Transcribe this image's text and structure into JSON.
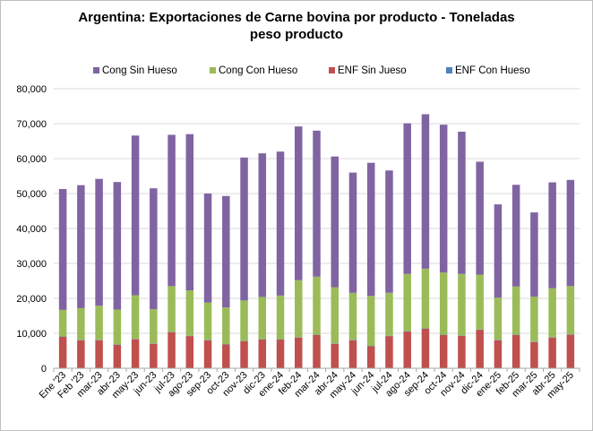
{
  "chart_data": {
    "type": "bar",
    "stacked": true,
    "title_line1": "Argentina: Exportaciones de Carne bovina por producto - Toneladas",
    "title_line2": "peso producto",
    "xlabel": "",
    "ylabel": "",
    "ylim": [
      0,
      80000
    ],
    "yticks": [
      "0",
      "10,000",
      "20,000",
      "30,000",
      "40,000",
      "50,000",
      "60,000",
      "70,000",
      "80,000"
    ],
    "grid": true,
    "legend_position": "top",
    "categories": [
      "Ene '23",
      "Feb '23",
      "mar-23",
      "abr-23",
      "may-23",
      "jun-23",
      "jul-23",
      "ago-23",
      "sep-23",
      "oct-23",
      "nov-23",
      "dic-23",
      "ene-24",
      "feb-24",
      "mar-24",
      "abr-24",
      "may-24",
      "jun-24",
      "jul-24",
      "ago-24",
      "sep-24",
      "oct-24",
      "nov-24",
      "dic-24",
      "ene-25",
      "feb-25",
      "mar-25",
      "abr-25",
      "may-25"
    ],
    "series": [
      {
        "name": "ENF Sin Jueso",
        "color": "#c0504d",
        "values": [
          9000,
          8000,
          8000,
          6700,
          8300,
          7000,
          10300,
          9200,
          8000,
          6800,
          7700,
          8200,
          8200,
          8800,
          9500,
          7000,
          8000,
          6300,
          9200,
          10500,
          11300,
          9500,
          9300,
          11000,
          8000,
          9500,
          7500,
          8800,
          9600
        ]
      },
      {
        "name": "ENF Con Hueso",
        "color": "#4f81bd",
        "values": [
          100,
          100,
          100,
          100,
          100,
          100,
          100,
          100,
          100,
          100,
          100,
          100,
          100,
          100,
          100,
          100,
          100,
          100,
          100,
          100,
          100,
          100,
          100,
          100,
          100,
          100,
          100,
          100,
          100
        ]
      },
      {
        "name": "Cong Con Hueso",
        "color": "#9bbb59",
        "values": [
          7600,
          9100,
          9800,
          10000,
          12500,
          9800,
          13100,
          13000,
          10700,
          10500,
          11600,
          12100,
          12500,
          16300,
          16600,
          16100,
          13500,
          14300,
          12300,
          16400,
          17100,
          17800,
          17600,
          15700,
          12100,
          13800,
          12900,
          14000,
          13800
        ]
      },
      {
        "name": "Cong Sin Hueso",
        "color": "#8064a2",
        "values": [
          34600,
          35200,
          36300,
          36500,
          45700,
          34600,
          43300,
          44700,
          31200,
          31900,
          40900,
          41100,
          41200,
          44000,
          41800,
          37400,
          34400,
          38100,
          35000,
          43100,
          44200,
          42300,
          40700,
          32300,
          26700,
          29100,
          24100,
          30300,
          30400
        ]
      }
    ],
    "legend": [
      {
        "name": "Cong Sin Hueso",
        "color": "#8064a2"
      },
      {
        "name": "Cong Con Hueso",
        "color": "#9bbb59"
      },
      {
        "name": "ENF Sin Jueso",
        "color": "#c0504d"
      },
      {
        "name": "ENF Con Hueso",
        "color": "#4f81bd"
      }
    ]
  }
}
